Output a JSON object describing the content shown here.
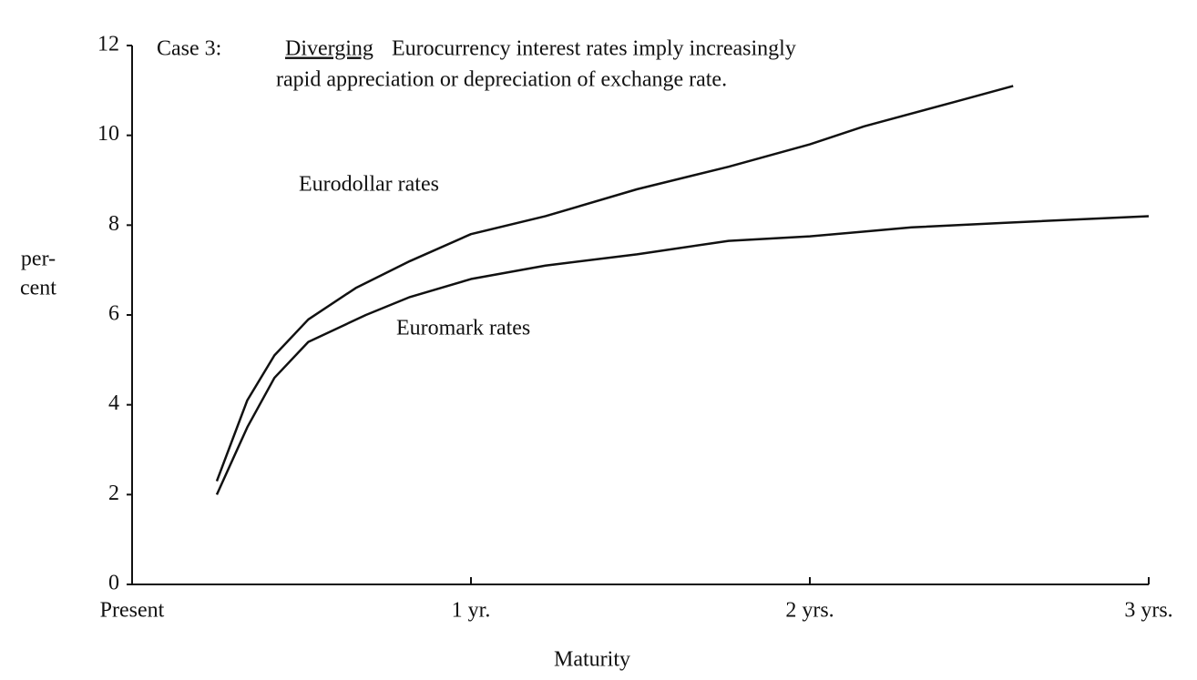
{
  "chart_data": {
    "type": "line",
    "title": {
      "label": "Case 3:",
      "emphasis": "Diverging",
      "lines": [
        "Eurocurrency interest rates imply increasingly",
        "rapid appreciation or depreciation of exchange rate."
      ]
    },
    "xlabel": "Maturity",
    "ylabel": [
      "per-",
      "cent"
    ],
    "xlim": [
      0,
      3
    ],
    "xticks": [
      {
        "value": 0,
        "label": "Present"
      },
      {
        "value": 1,
        "label": "1 yr."
      },
      {
        "value": 2,
        "label": "2 yrs."
      },
      {
        "value": 3,
        "label": "3 yrs."
      }
    ],
    "ylim": [
      0,
      12
    ],
    "yticks": [
      0,
      2,
      4,
      6,
      8,
      10,
      12
    ],
    "grid": false,
    "series": [
      {
        "name": "Eurodollar rates",
        "color": "#111111",
        "x": [
          0.25,
          0.34,
          0.42,
          0.52,
          0.66,
          0.82,
          1.0,
          1.22,
          1.49,
          1.76,
          2.0,
          2.16,
          2.43,
          2.6
        ],
        "values": [
          2.3,
          4.1,
          5.1,
          5.9,
          6.6,
          7.2,
          7.8,
          8.2,
          8.8,
          9.3,
          9.8,
          10.2,
          10.75,
          11.1
        ]
      },
      {
        "name": "Euromark rates",
        "color": "#111111",
        "x": [
          0.25,
          0.34,
          0.42,
          0.52,
          0.69,
          0.82,
          1.0,
          1.22,
          1.49,
          1.76,
          2.0,
          2.3,
          2.57,
          3.0
        ],
        "values": [
          2.0,
          3.5,
          4.6,
          5.4,
          6.0,
          6.4,
          6.8,
          7.1,
          7.35,
          7.65,
          7.75,
          7.95,
          8.05,
          8.2
        ]
      }
    ]
  }
}
